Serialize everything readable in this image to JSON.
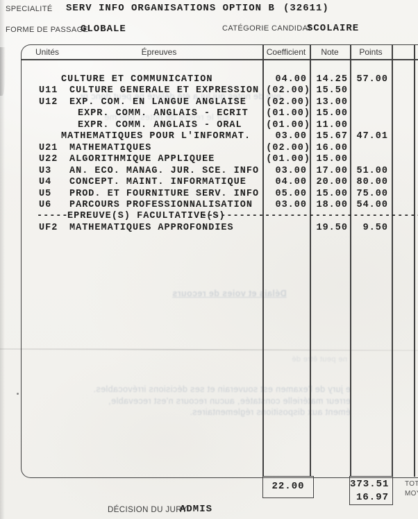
{
  "colors": {
    "paper": "#f4f3f0",
    "ink": "#1c1c1c",
    "line": "#3f3f3f",
    "label": "#3a3a3a",
    "bleed": "#a9b3c0"
  },
  "meta": {
    "speciality_label": "SPECIALITÉ",
    "speciality_value": "SERV INFO ORGANISATIONS OPTION B",
    "speciality_code": "(32611)",
    "forme_label": "FORME DE PASSAGE",
    "forme_value": "GLOBALE",
    "categorie_label": "CATÉGORIE CANDIDAT",
    "categorie_value": "SCOLAIRE"
  },
  "table": {
    "headers": {
      "unites": "Unités",
      "epreuves": "Épreuves",
      "coefficient": "Coefficient",
      "note": "Note",
      "points": "Points"
    },
    "rows": [
      {
        "unit": "",
        "name": "CULTURE ET COMMUNICATION",
        "indent": 0,
        "coeff": "04.00",
        "note": "14.25",
        "points": "57.00"
      },
      {
        "unit": "U11",
        "name": "CULTURE GENERALE ET EXPRESSION",
        "indent": 1,
        "coeff": "(02.00)",
        "note": "15.50",
        "points": ""
      },
      {
        "unit": "U12",
        "name": "EXP. COM. EN LANGUE ANGLAISE",
        "indent": 1,
        "coeff": "(02.00)",
        "note": "13.00",
        "points": ""
      },
      {
        "unit": "",
        "name": "EXPR. COMM. ANGLAIS - ECRIT",
        "indent": 2,
        "coeff": "(01.00)",
        "note": "15.00",
        "points": ""
      },
      {
        "unit": "",
        "name": "EXPR. COMM. ANGLAIS - ORAL",
        "indent": 2,
        "coeff": "(01.00)",
        "note": "11.00",
        "points": ""
      },
      {
        "unit": "",
        "name": "MATHEMATIQUES POUR L'INFORMAT.",
        "indent": 0,
        "coeff": "03.00",
        "note": "15.67",
        "points": "47.01"
      },
      {
        "unit": "U21",
        "name": "MATHEMATIQUES",
        "indent": 1,
        "coeff": "(02.00)",
        "note": "16.00",
        "points": ""
      },
      {
        "unit": "U22",
        "name": "ALGORITHMIQUE APPLIQUEE",
        "indent": 1,
        "coeff": "(01.00)",
        "note": "15.00",
        "points": ""
      },
      {
        "unit": "U3",
        "name": "AN. ECO. MANAG. JUR. SCE. INFO",
        "indent": 1,
        "coeff": "03.00",
        "note": "17.00",
        "points": "51.00"
      },
      {
        "unit": "U4",
        "name": "CONCEPT. MAINT. INFORMATIQUE",
        "indent": 1,
        "coeff": "04.00",
        "note": "20.00",
        "points": "80.00"
      },
      {
        "unit": "U5",
        "name": "PROD. ET FOURNITURE SERV. INFO",
        "indent": 1,
        "coeff": "05.00",
        "note": "15.00",
        "points": "75.00"
      },
      {
        "unit": "U6",
        "name": "PARCOURS PROFESSIONNALISATION",
        "indent": 1,
        "coeff": "03.00",
        "note": "18.00",
        "points": "54.00"
      },
      {
        "type": "separator",
        "left_dashes": "-----",
        "label": "EPREUVE(S) FACULTATIVE(S)",
        "right_dashes": "--------------------------------------"
      },
      {
        "unit": "UF2",
        "name": "MATHEMATIQUES APPROFONDIES",
        "indent": 1,
        "coeff": "",
        "note": "19.50",
        "points": "9.50"
      }
    ],
    "totals": {
      "coeff_total": "22.00",
      "points_total": "373.51",
      "moyenne": "16.97",
      "total_label": "TOT",
      "moyenne_label": "MOY"
    }
  },
  "decision": {
    "label": "DÉCISION DU JURY",
    "value": "ADMIS"
  },
  "bleedthrough": {
    "line_top_1": "evé de notes qui lui a été délivré ne peut donc pr",
    "line_top_2": "sur le relevé de notes, une me",
    "heading": "Délais et voies de recours",
    "line_mid": "ne peut être dé",
    "paragraph": [
      "e jury de l'examen est souverain et ses décisions irrévocables.",
      "erreur matérielle constatée, aucun recours n'est recevable,",
      "ément aux dispositions réglementaires."
    ]
  }
}
